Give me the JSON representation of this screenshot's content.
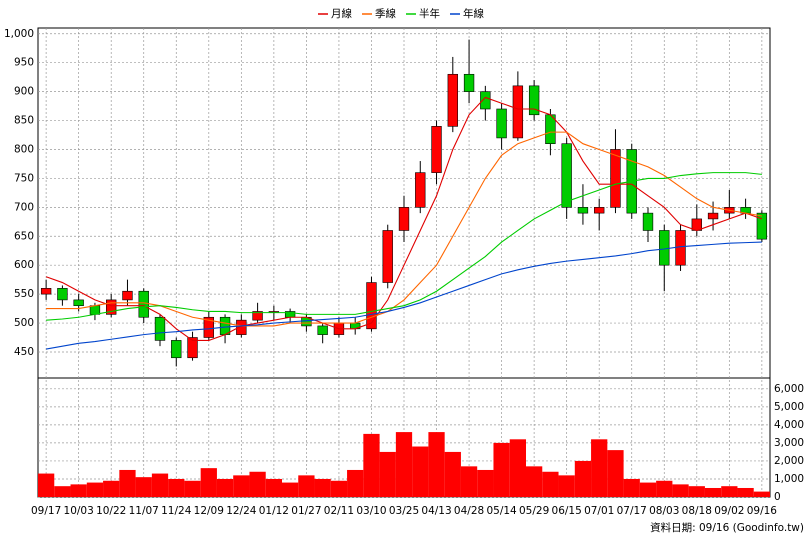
{
  "chart_data": [
    {
      "type": "candlestick",
      "categories": [
        "09/17",
        null,
        "10/03",
        null,
        "10/22",
        null,
        "11/07",
        null,
        "11/24",
        null,
        "12/09",
        null,
        "12/24",
        null,
        "01/12",
        null,
        "01/27",
        null,
        "02/11",
        null,
        "03/10",
        null,
        "03/25",
        null,
        "04/13",
        null,
        "04/28",
        null,
        "05/14",
        null,
        "05/29",
        null,
        "06/15",
        null,
        "07/01",
        null,
        "07/17",
        null,
        "08/03",
        null,
        "08/18",
        null,
        "09/02",
        null,
        "09/16"
      ],
      "open": [
        550,
        560,
        540,
        530,
        515,
        540,
        555,
        510,
        470,
        440,
        475,
        510,
        480,
        505,
        520,
        520,
        510,
        495,
        480,
        500,
        490,
        570,
        660,
        700,
        760,
        840,
        930,
        900,
        870,
        820,
        910,
        860,
        810,
        700,
        690,
        700,
        800,
        690,
        660,
        600,
        660,
        680,
        690,
        700,
        690
      ],
      "high": [
        575,
        565,
        550,
        535,
        550,
        575,
        560,
        515,
        475,
        485,
        520,
        515,
        515,
        535,
        530,
        525,
        515,
        500,
        510,
        510,
        580,
        670,
        720,
        780,
        850,
        960,
        990,
        910,
        880,
        935,
        920,
        870,
        820,
        740,
        715,
        835,
        810,
        700,
        670,
        670,
        705,
        710,
        730,
        715,
        695
      ],
      "low": [
        540,
        530,
        520,
        505,
        510,
        530,
        500,
        460,
        425,
        435,
        470,
        465,
        475,
        500,
        505,
        500,
        485,
        465,
        475,
        480,
        485,
        560,
        640,
        690,
        740,
        830,
        880,
        850,
        800,
        815,
        850,
        790,
        680,
        670,
        660,
        690,
        680,
        640,
        555,
        590,
        650,
        660,
        680,
        680,
        640
      ],
      "close": [
        560,
        540,
        530,
        515,
        540,
        555,
        510,
        470,
        440,
        475,
        510,
        480,
        505,
        520,
        520,
        510,
        495,
        480,
        500,
        490,
        570,
        660,
        700,
        760,
        840,
        930,
        900,
        870,
        820,
        910,
        860,
        810,
        700,
        690,
        700,
        800,
        690,
        660,
        600,
        660,
        680,
        690,
        700,
        690,
        645
      ],
      "up_color": "#ff0000",
      "down_color": "#00cc00",
      "series": [
        {
          "name": "月線",
          "color": "#e00000",
          "values": [
            580,
            570,
            555,
            540,
            530,
            530,
            530,
            515,
            490,
            470,
            470,
            480,
            495,
            500,
            505,
            510,
            510,
            500,
            490,
            490,
            500,
            540,
            600,
            660,
            720,
            800,
            860,
            890,
            880,
            870,
            870,
            860,
            830,
            780,
            740,
            740,
            740,
            720,
            700,
            670,
            660,
            670,
            680,
            690,
            680
          ]
        },
        {
          "name": "季線",
          "color": "#ff6600",
          "values": [
            525,
            525,
            525,
            530,
            535,
            535,
            535,
            530,
            520,
            510,
            505,
            500,
            495,
            495,
            495,
            500,
            500,
            500,
            500,
            500,
            510,
            520,
            540,
            570,
            600,
            650,
            700,
            750,
            790,
            810,
            820,
            830,
            830,
            810,
            800,
            790,
            780,
            770,
            755,
            735,
            715,
            700,
            695,
            690,
            685
          ]
        },
        {
          "name": "半年",
          "color": "#00cc00",
          "values": [
            505,
            507,
            510,
            515,
            520,
            525,
            528,
            530,
            527,
            523,
            520,
            520,
            518,
            518,
            518,
            518,
            515,
            515,
            515,
            515,
            520,
            525,
            530,
            540,
            555,
            575,
            595,
            615,
            640,
            660,
            680,
            695,
            710,
            720,
            730,
            740,
            745,
            750,
            750,
            755,
            758,
            760,
            760,
            760,
            757
          ]
        },
        {
          "name": "年線",
          "color": "#0044cc",
          "values": [
            455,
            460,
            465,
            468,
            472,
            476,
            480,
            483,
            485,
            488,
            490,
            493,
            495,
            497,
            500,
            502,
            504,
            506,
            508,
            510,
            515,
            520,
            527,
            535,
            545,
            555,
            565,
            575,
            585,
            592,
            598,
            603,
            607,
            610,
            613,
            616,
            620,
            625,
            628,
            632,
            634,
            636,
            638,
            639,
            640
          ]
        }
      ],
      "ylim": [
        405,
        1010
      ],
      "yticks": [
        450,
        500,
        550,
        600,
        650,
        700,
        750,
        800,
        850,
        900,
        950,
        {
          "value": 1000,
          "label": "1,000"
        }
      ],
      "grid": true,
      "legend": "top"
    },
    {
      "type": "bar",
      "color": "#ff0000",
      "values": [
        1300,
        600,
        700,
        800,
        900,
        1500,
        1100,
        1300,
        1000,
        900,
        1600,
        1000,
        1200,
        1400,
        1000,
        800,
        1200,
        1000,
        900,
        1500,
        3500,
        2500,
        3600,
        2800,
        3600,
        2500,
        1700,
        1500,
        3000,
        3200,
        1700,
        1400,
        1200,
        2000,
        3200,
        2600,
        1000,
        800,
        900,
        700,
        600,
        500,
        600,
        500,
        300
      ],
      "ylim": [
        0,
        6600
      ],
      "yticks": [
        0,
        {
          "value": 1000,
          "label": "1,000"
        },
        {
          "value": 2000,
          "label": "2,000"
        },
        {
          "value": 3000,
          "label": "3,000"
        },
        {
          "value": 4000,
          "label": "4,000"
        },
        {
          "value": 5000,
          "label": "5,000"
        },
        {
          "value": 6000,
          "label": "6,000"
        }
      ],
      "grid": true,
      "footnote": "資料日期: 09/16 (Goodinfo.tw)"
    }
  ]
}
